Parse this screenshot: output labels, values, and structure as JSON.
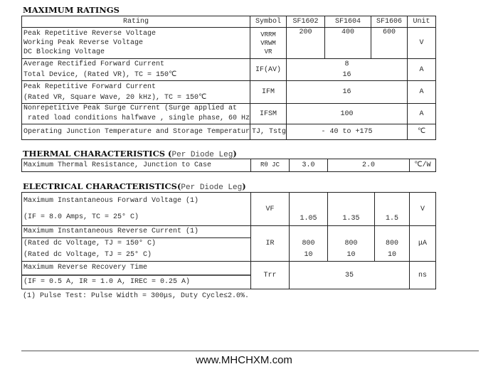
{
  "max_ratings": {
    "title": "MAXIMUM RATINGS",
    "headers": [
      "Rating",
      "Symbol",
      "SF1602",
      "SF1604",
      "SF1606",
      "Unit"
    ],
    "rows": [
      {
        "rating": [
          "Peak Repetitive Reverse Voltage",
          "Working Peak Reverse Voltage",
          "DC Blocking Voltage"
        ],
        "symbol": [
          "VRRM",
          "VRWM",
          "VR"
        ],
        "values": [
          "200",
          "400",
          "600"
        ],
        "unit": "V"
      },
      {
        "rating": [
          "Average Rectified Forward Current",
          "Total Device, (Rated VR), TC = 150℃"
        ],
        "symbol": [
          "IF(AV)"
        ],
        "values": [
          "8",
          "16"
        ],
        "unit": "A"
      },
      {
        "rating": [
          "Peak Repetitive Forward Current",
          "(Rated VR, Square Wave, 20 kHz), TC = 150℃"
        ],
        "symbol": [
          "IFM"
        ],
        "values": [
          "16"
        ],
        "unit": "A"
      },
      {
        "rating": [
          "Nonrepetitive Peak Surge Current  (Surge applied at",
          " rated load conditions halfwave , single phase, 60 Hz"
        ],
        "symbol": [
          "IFSM"
        ],
        "values": [
          "100"
        ],
        "unit": "A"
      },
      {
        "rating": [
          "Operating Junction Temperature and Storage Temperatur"
        ],
        "symbol": [
          "TJ, Tstg"
        ],
        "values": [
          "- 40 to +175"
        ],
        "unit": "℃"
      }
    ]
  },
  "thermal": {
    "title": "THERMAL CHARACTERISTICS",
    "subtitle": "Per Diode Leg",
    "row": {
      "rating": "Maximum Thermal Resistance, Junction to Case",
      "symbol": "Rθ JC",
      "values": [
        "3.0",
        "2.0"
      ],
      "unit": "℃/W"
    }
  },
  "electrical": {
    "title": "ELECTRICAL CHARACTERISTICS",
    "subtitle": "Per Diode Leg",
    "rows": [
      {
        "rating": [
          "Maximum Instantaneous Forward Voltage (1)",
          "(IF = 8.0 Amps, TC = 25° C)"
        ],
        "symbol": "VF",
        "values": [
          "1.05",
          "1.35",
          "1.5"
        ],
        "unit": "V"
      },
      {
        "rating": [
          "Maximum Instantaneous Reverse Current (1)",
          "(Rated dc Voltage, TJ = 150° C)",
          "(Rated dc Voltage, TJ = 25° C)"
        ],
        "symbol": "IR",
        "values": [
          [
            "800",
            "10"
          ],
          [
            "800",
            "10"
          ],
          [
            "800",
            "10"
          ]
        ],
        "unit": "μA"
      },
      {
        "rating": [
          "Maximum Reverse Recovery Time",
          "(IF = 0.5 A, IR = 1.0 A, IREC = 0.25 A)"
        ],
        "symbol": "Trr",
        "values": [
          "35"
        ],
        "unit": "ns"
      }
    ]
  },
  "footnote": "(1) Pulse Test: Pulse Width = 300μs, Duty Cycle≤2.0%.",
  "website": "www.MHCHXM.com"
}
